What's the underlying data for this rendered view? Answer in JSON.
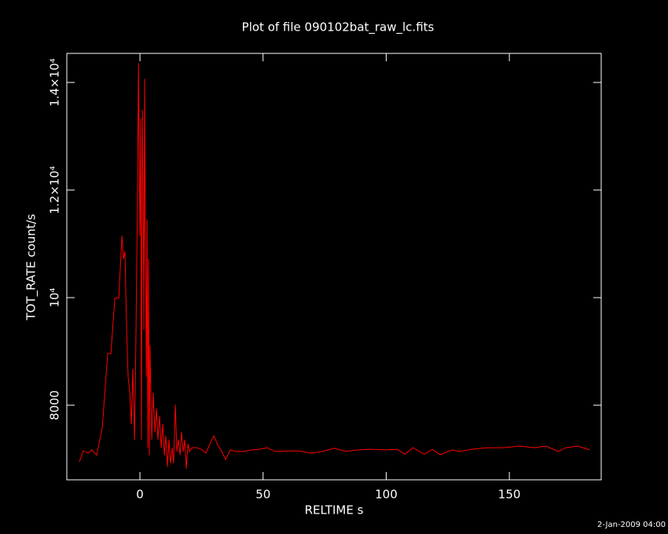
{
  "chart_data": {
    "type": "line",
    "title": "Plot of file 090102bat_raw_lc.fits",
    "x_label": "RELTIME  s",
    "y_label": "TOT_RATE  count/s",
    "timestamp": "2-Jan-2009 04:00",
    "color": "#ff0000",
    "x": [
      -24.6,
      -23,
      -21,
      -19.5,
      -17.6,
      -15.3,
      -13.1,
      -11.8,
      -10.2,
      -8.6,
      -7.3,
      -6.7,
      -6.1,
      -5.4,
      -4.8,
      -4.1,
      -3.5,
      -2.9,
      -2.2,
      -1.6,
      -1,
      -0.6,
      -0.3,
      0,
      0.3,
      0.6,
      1,
      1.3,
      1.6,
      1.9,
      2.2,
      2.6,
      2.9,
      3.2,
      3.5,
      3.8,
      4.1,
      4.8,
      5.4,
      6.1,
      6.7,
      7.3,
      8,
      8.6,
      9.3,
      9.9,
      10.5,
      11.2,
      11.8,
      12.4,
      13.1,
      13.7,
      14.4,
      15,
      15.6,
      16.3,
      16.9,
      17.6,
      18.2,
      18.8,
      19.5,
      20.1,
      21.1,
      23,
      24.9,
      26.8,
      28.4,
      30,
      31.6,
      33.2,
      34.8,
      36.7,
      38.9,
      42.1,
      45.3,
      48.5,
      51.7,
      54.9,
      59.7,
      64.5,
      69.3,
      74,
      78.8,
      83.6,
      88.4,
      93.2,
      99.6,
      104.4,
      107.6,
      110.8,
      115.5,
      118.7,
      121.9,
      126.7,
      129.9,
      134.7,
      141.1,
      147.5,
      153.9,
      160.3,
      165,
      169.8,
      173,
      177.8,
      182.6
    ],
    "values": [
      6950,
      7150,
      7110,
      7170,
      7070,
      7580,
      8960,
      8960,
      9990,
      9990,
      11150,
      10720,
      10860,
      9400,
      8530,
      8230,
      7650,
      8670,
      7360,
      9400,
      11880,
      14360,
      12600,
      11150,
      13340,
      7360,
      13490,
      11880,
      9400,
      14070,
      11150,
      8530,
      11450,
      7210,
      10720,
      7070,
      9110,
      7360,
      8230,
      7500,
      7940,
      7360,
      7800,
      7210,
      7650,
      7070,
      7430,
      6850,
      7360,
      6920,
      7210,
      6920,
      8010,
      7140,
      7360,
      7070,
      7500,
      7140,
      7360,
      6820,
      7280,
      7140,
      7210,
      7210,
      7180,
      7110,
      7280,
      7430,
      7260,
      7140,
      6990,
      7170,
      7140,
      7140,
      7170,
      7180,
      7210,
      7140,
      7150,
      7150,
      7110,
      7140,
      7200,
      7140,
      7170,
      7180,
      7170,
      7180,
      7090,
      7210,
      7090,
      7180,
      7080,
      7170,
      7140,
      7180,
      7210,
      7210,
      7240,
      7210,
      7240,
      7140,
      7210,
      7240,
      7170
    ],
    "xlim": [
      -29.7,
      187.3
    ],
    "ylim": [
      6613,
      14540
    ],
    "xticks": [
      0,
      50,
      100,
      150
    ],
    "yticks": [
      8000,
      {
        "value": 10000,
        "label": "10⁴"
      },
      {
        "value": 12000,
        "label": "1.2×10⁴"
      },
      {
        "value": 14000,
        "label": "1.4×10⁴"
      }
    ]
  }
}
